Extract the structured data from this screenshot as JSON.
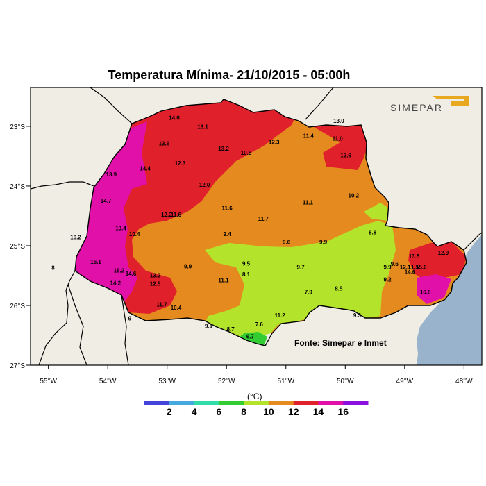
{
  "title": "Temperatura Mínima- 21/10/2015 - 05:00h",
  "source": "Fonte: Simepar e Inmet",
  "logo_text": "SIMEPAR",
  "colorbar": {
    "unit": "(°C)",
    "colors": [
      "#4444dd",
      "#44aadd",
      "#33ddaa",
      "#33cc33",
      "#b3e32a",
      "#e58a1e",
      "#e0202a",
      "#e010a8",
      "#8a10e0"
    ],
    "labels": [
      "2",
      "4",
      "6",
      "8",
      "10",
      "12",
      "14",
      "16"
    ]
  },
  "axes": {
    "lon_ticks": [
      "55°W",
      "54°W",
      "53°W",
      "52°W",
      "51°W",
      "50°W",
      "49°W",
      "48°W"
    ],
    "lat_ticks": [
      "23°S",
      "24°S",
      "25°S",
      "26°S",
      "27°S"
    ]
  },
  "region_colors": {
    "ocean": "#9ab3cc",
    "land": "#efede4",
    "zone_16": "#e010a8",
    "zone_14": "#e0202a",
    "zone_12": "#e58a1e",
    "zone_10": "#b3e32a",
    "zone_8": "#33cc33"
  },
  "stations": [
    {
      "v": "14.0",
      "lon": -52.88,
      "lat": -22.89
    },
    {
      "v": "13.1",
      "lon": -52.4,
      "lat": -23.04
    },
    {
      "v": "13.6",
      "lon": -53.05,
      "lat": -23.32
    },
    {
      "v": "13.2",
      "lon": -52.05,
      "lat": -23.41
    },
    {
      "v": "12.3",
      "lon": -51.2,
      "lat": -23.3
    },
    {
      "v": "10.8",
      "lon": -51.67,
      "lat": -23.48
    },
    {
      "v": "11.4",
      "lon": -50.62,
      "lat": -23.19
    },
    {
      "v": "11.0",
      "lon": -50.13,
      "lat": -23.24
    },
    {
      "v": "13.0",
      "lon": -50.11,
      "lat": -22.94
    },
    {
      "v": "12.6",
      "lon": -49.99,
      "lat": -23.52
    },
    {
      "v": "13.9",
      "lon": -53.94,
      "lat": -23.84
    },
    {
      "v": "14.4",
      "lon": -53.37,
      "lat": -23.74
    },
    {
      "v": "12.3",
      "lon": -52.78,
      "lat": -23.65
    },
    {
      "v": "12.0",
      "lon": -52.37,
      "lat": -24.01
    },
    {
      "v": "14.7",
      "lon": -54.03,
      "lat": -24.28
    },
    {
      "v": "11.6",
      "lon": -51.99,
      "lat": -24.4
    },
    {
      "v": "11.1",
      "lon": -50.63,
      "lat": -24.31
    },
    {
      "v": "10.2",
      "lon": -49.86,
      "lat": -24.19
    },
    {
      "v": "12.2",
      "lon": -53.01,
      "lat": -24.51
    },
    {
      "v": "11.6",
      "lon": -52.85,
      "lat": -24.51
    },
    {
      "v": "11.7",
      "lon": -51.38,
      "lat": -24.58
    },
    {
      "v": "13.4",
      "lon": -53.78,
      "lat": -24.74
    },
    {
      "v": "10.4",
      "lon": -53.55,
      "lat": -24.84
    },
    {
      "v": "9.4",
      "lon": -51.99,
      "lat": -24.84
    },
    {
      "v": "9.6",
      "lon": -50.99,
      "lat": -24.97
    },
    {
      "v": "9.9",
      "lon": -50.37,
      "lat": -24.97
    },
    {
      "v": "8.8",
      "lon": -49.54,
      "lat": -24.81
    },
    {
      "v": "16.2",
      "lon": -54.54,
      "lat": -24.89
    },
    {
      "v": "16.1",
      "lon": -54.2,
      "lat": -25.3
    },
    {
      "v": "9.5",
      "lon": -51.67,
      "lat": -25.33
    },
    {
      "v": "9.7",
      "lon": -50.75,
      "lat": -25.39
    },
    {
      "v": "9.9",
      "lon": -52.65,
      "lat": -25.38
    },
    {
      "v": "8.1",
      "lon": -51.67,
      "lat": -25.51
    },
    {
      "v": "11.1",
      "lon": -52.05,
      "lat": -25.61
    },
    {
      "v": "15.2",
      "lon": -53.81,
      "lat": -25.45
    },
    {
      "v": "14.6",
      "lon": -53.61,
      "lat": -25.5
    },
    {
      "v": "13.2",
      "lon": -53.2,
      "lat": -25.53
    },
    {
      "v": "14.2",
      "lon": -53.87,
      "lat": -25.66
    },
    {
      "v": "12.5",
      "lon": -53.2,
      "lat": -25.67
    },
    {
      "v": "9.9",
      "lon": -49.29,
      "lat": -25.39
    },
    {
      "v": "9.6",
      "lon": -49.17,
      "lat": -25.34
    },
    {
      "v": "12.1",
      "lon": -48.99,
      "lat": -25.39
    },
    {
      "v": "11.5",
      "lon": -48.85,
      "lat": -25.39
    },
    {
      "v": "15.0",
      "lon": -48.72,
      "lat": -25.39
    },
    {
      "v": "13.5",
      "lon": -48.84,
      "lat": -25.21
    },
    {
      "v": "12.9",
      "lon": -48.35,
      "lat": -25.15
    },
    {
      "v": "14.6",
      "lon": -48.91,
      "lat": -25.47
    },
    {
      "v": "9.2",
      "lon": -49.29,
      "lat": -25.6
    },
    {
      "v": "8.5",
      "lon": -50.11,
      "lat": -25.75
    },
    {
      "v": "7.9",
      "lon": -50.62,
      "lat": -25.81
    },
    {
      "v": "16.8",
      "lon": -48.65,
      "lat": -25.81
    },
    {
      "v": "11.7",
      "lon": -53.09,
      "lat": -26.02
    },
    {
      "v": "10.4",
      "lon": -52.85,
      "lat": -26.07
    },
    {
      "v": "11.2",
      "lon": -51.1,
      "lat": -26.2
    },
    {
      "v": "9.1",
      "lon": -52.3,
      "lat": -26.38
    },
    {
      "v": "8.7",
      "lon": -51.93,
      "lat": -26.43
    },
    {
      "v": "7.6",
      "lon": -51.45,
      "lat": -26.35
    },
    {
      "v": "6.7",
      "lon": -51.6,
      "lat": -26.55
    },
    {
      "v": "9.3",
      "lon": -49.8,
      "lat": -26.2
    },
    {
      "v": "9",
      "lon": -53.63,
      "lat": -26.25
    },
    {
      "v": "8",
      "lon": -54.92,
      "lat": -25.4
    }
  ]
}
